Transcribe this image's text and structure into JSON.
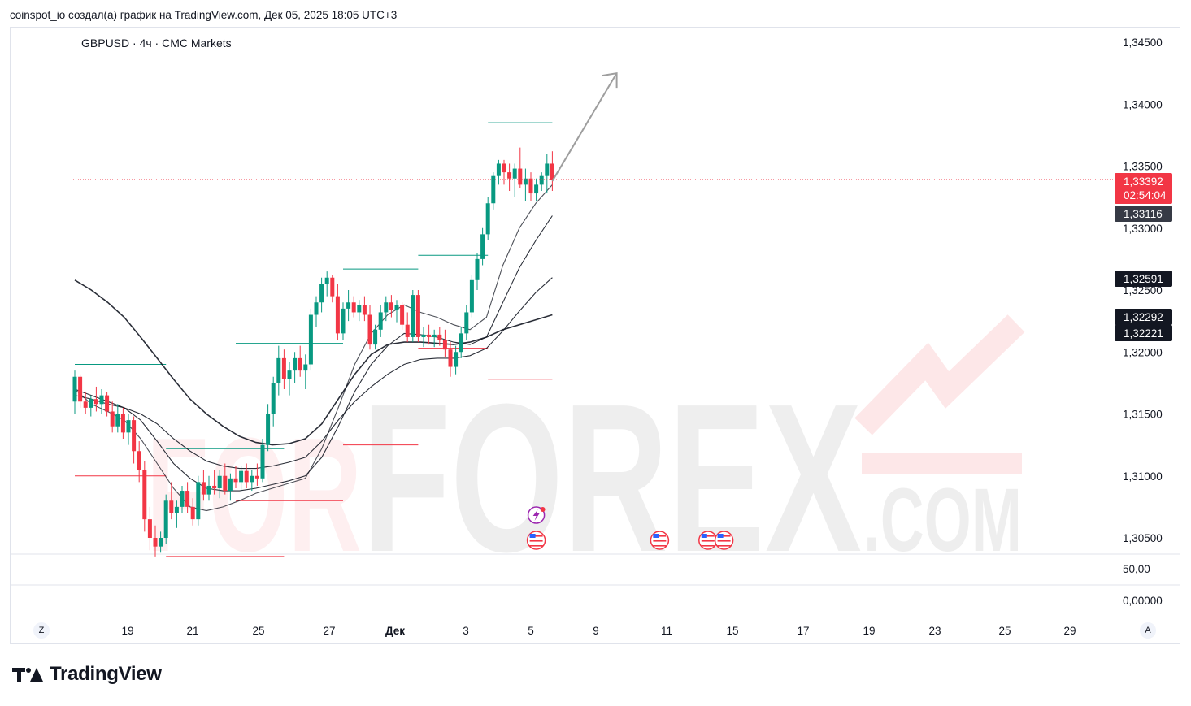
{
  "header": {
    "attribution": "coinspot_io создал(а) график на TradingView.com, Дек 05, 2025 18:05 UTC+3"
  },
  "symbol_line": "GBPUSD · 4ч · CMC Markets",
  "watermark": {
    "left": "FOR",
    "main": "FOREX",
    "suffix": ".COM"
  },
  "branding": "TradingView",
  "controls": {
    "left_button": "Z",
    "right_button": "A"
  },
  "colors": {
    "up": "#089981",
    "down": "#f23645",
    "ma": "#131722",
    "arrow": "#9e9e9e",
    "price_badge": "#f23645",
    "badge_dark": "#131722",
    "badge_gray": "#363a45"
  },
  "chart_data": {
    "type": "candlestick",
    "title": "GBPUSD · 4ч · CMC Markets",
    "timeframe": "4ч",
    "y_axis": {
      "ticks": [
        "1,34500",
        "1,34000",
        "1,33500",
        "1,33000",
        "1,32500",
        "1,32000",
        "1,31500",
        "1,31000",
        "1,30500"
      ],
      "range": [
        1.303,
        1.3465
      ]
    },
    "x_axis": {
      "ticks": [
        "19",
        "21",
        "25",
        "27",
        "Дек",
        "3",
        "5",
        "9",
        "11",
        "15",
        "17",
        "19",
        "23",
        "25",
        "29"
      ]
    },
    "price_badges": [
      {
        "label": "1,33392",
        "value": 1.33392,
        "extra": "02:54:04",
        "color": "#f23645"
      },
      {
        "label": "1,33116",
        "value": 1.33116,
        "color": "#363a45"
      },
      {
        "label": "1,32591",
        "value": 1.32591,
        "color": "#131722"
      },
      {
        "label": "1,32292",
        "value": 1.32292,
        "color": "#131722"
      },
      {
        "label": "1,32221",
        "value": 1.32221,
        "color": "#131722"
      }
    ],
    "current_price": 1.33392,
    "indicator_pane": {
      "ticks": [
        "50,00",
        "0,00000"
      ]
    },
    "candles": [
      [
        1.316,
        1.3185,
        1.315,
        1.318
      ],
      [
        1.318,
        1.3182,
        1.3155,
        1.316
      ],
      [
        1.316,
        1.3168,
        1.315,
        1.3155
      ],
      [
        1.3155,
        1.3165,
        1.3148,
        1.3162
      ],
      [
        1.3162,
        1.3172,
        1.3152,
        1.3158
      ],
      [
        1.3158,
        1.317,
        1.315,
        1.3165
      ],
      [
        1.3165,
        1.3168,
        1.3148,
        1.3152
      ],
      [
        1.3152,
        1.316,
        1.3135,
        1.314
      ],
      [
        1.314,
        1.3158,
        1.3135,
        1.315
      ],
      [
        1.315,
        1.3155,
        1.313,
        1.3135
      ],
      [
        1.3135,
        1.315,
        1.3125,
        1.3145
      ],
      [
        1.3145,
        1.3148,
        1.311,
        1.312
      ],
      [
        1.312,
        1.3128,
        1.3095,
        1.3105
      ],
      [
        1.3105,
        1.3112,
        1.3055,
        1.3065
      ],
      [
        1.3065,
        1.3075,
        1.304,
        1.305
      ],
      [
        1.305,
        1.306,
        1.3035,
        1.3043
      ],
      [
        1.3043,
        1.3055,
        1.3038,
        1.305
      ],
      [
        1.305,
        1.3085,
        1.3045,
        1.308
      ],
      [
        1.308,
        1.3095,
        1.3065,
        1.307
      ],
      [
        1.307,
        1.308,
        1.3058,
        1.3075
      ],
      [
        1.3075,
        1.3092,
        1.307,
        1.3088
      ],
      [
        1.3088,
        1.3095,
        1.307,
        1.3075
      ],
      [
        1.3075,
        1.3082,
        1.306,
        1.3065
      ],
      [
        1.3065,
        1.31,
        1.306,
        1.3095
      ],
      [
        1.3095,
        1.3105,
        1.308,
        1.3085
      ],
      [
        1.3085,
        1.31,
        1.308,
        1.3092
      ],
      [
        1.3092,
        1.3105,
        1.3085,
        1.309
      ],
      [
        1.309,
        1.3105,
        1.3082,
        1.31
      ],
      [
        1.31,
        1.311,
        1.3085,
        1.3088
      ],
      [
        1.3088,
        1.3102,
        1.308,
        1.3098
      ],
      [
        1.3098,
        1.3108,
        1.309,
        1.3095
      ],
      [
        1.3095,
        1.3108,
        1.3088,
        1.3104
      ],
      [
        1.3104,
        1.311,
        1.309,
        1.3095
      ],
      [
        1.3095,
        1.3105,
        1.3088,
        1.31
      ],
      [
        1.31,
        1.311,
        1.3092,
        1.3098
      ],
      [
        1.3098,
        1.313,
        1.3095,
        1.3125
      ],
      [
        1.3125,
        1.3158,
        1.312,
        1.315
      ],
      [
        1.315,
        1.318,
        1.314,
        1.3175
      ],
      [
        1.3175,
        1.3205,
        1.3165,
        1.3195
      ],
      [
        1.3195,
        1.3202,
        1.317,
        1.3178
      ],
      [
        1.3178,
        1.3192,
        1.3165,
        1.3185
      ],
      [
        1.3185,
        1.32,
        1.3175,
        1.3195
      ],
      [
        1.3195,
        1.3205,
        1.318,
        1.3185
      ],
      [
        1.3185,
        1.3198,
        1.317,
        1.319
      ],
      [
        1.319,
        1.3235,
        1.3185,
        1.323
      ],
      [
        1.323,
        1.3245,
        1.322,
        1.324
      ],
      [
        1.324,
        1.326,
        1.3232,
        1.3255
      ],
      [
        1.3255,
        1.3265,
        1.3245,
        1.326
      ],
      [
        1.326,
        1.3262,
        1.324,
        1.3245
      ],
      [
        1.3245,
        1.3255,
        1.321,
        1.3215
      ],
      [
        1.3215,
        1.324,
        1.321,
        1.3235
      ],
      [
        1.3235,
        1.325,
        1.3225,
        1.324
      ],
      [
        1.324,
        1.3245,
        1.3228,
        1.3232
      ],
      [
        1.3232,
        1.3242,
        1.3225,
        1.3238
      ],
      [
        1.3238,
        1.3245,
        1.3225,
        1.323
      ],
      [
        1.323,
        1.3238,
        1.3202,
        1.3206
      ],
      [
        1.3206,
        1.3222,
        1.3202,
        1.3218
      ],
      [
        1.3218,
        1.3238,
        1.3212,
        1.3232
      ],
      [
        1.3232,
        1.3245,
        1.3225,
        1.324
      ],
      [
        1.324,
        1.3246,
        1.3228,
        1.3234
      ],
      [
        1.3234,
        1.3242,
        1.3224,
        1.3238
      ],
      [
        1.3238,
        1.324,
        1.3218,
        1.3222
      ],
      [
        1.3222,
        1.3232,
        1.3208,
        1.3212
      ],
      [
        1.3212,
        1.325,
        1.3208,
        1.3246
      ],
      [
        1.3246,
        1.325,
        1.3208,
        1.3212
      ],
      [
        1.3212,
        1.322,
        1.3204,
        1.3214
      ],
      [
        1.3214,
        1.3222,
        1.3206,
        1.3212
      ],
      [
        1.3212,
        1.3218,
        1.3204,
        1.3214
      ],
      [
        1.3214,
        1.322,
        1.3205,
        1.321
      ],
      [
        1.321,
        1.3218,
        1.3196,
        1.3202
      ],
      [
        1.3202,
        1.3208,
        1.318,
        1.3188
      ],
      [
        1.3188,
        1.3205,
        1.3182,
        1.32
      ],
      [
        1.32,
        1.322,
        1.3195,
        1.3215
      ],
      [
        1.3215,
        1.3238,
        1.321,
        1.3232
      ],
      [
        1.3232,
        1.3262,
        1.3228,
        1.3258
      ],
      [
        1.3258,
        1.328,
        1.325,
        1.3275
      ],
      [
        1.3275,
        1.33,
        1.327,
        1.3295
      ],
      [
        1.3295,
        1.3325,
        1.329,
        1.332
      ],
      [
        1.332,
        1.3345,
        1.3315,
        1.3342
      ],
      [
        1.3342,
        1.3355,
        1.3335,
        1.3352
      ],
      [
        1.3352,
        1.3355,
        1.3335,
        1.3345
      ],
      [
        1.3345,
        1.3352,
        1.333,
        1.334
      ],
      [
        1.334,
        1.3352,
        1.3325,
        1.3348
      ],
      [
        1.3348,
        1.3365,
        1.3332,
        1.3335
      ],
      [
        1.3335,
        1.3348,
        1.3322,
        1.334
      ],
      [
        1.334,
        1.3345,
        1.3322,
        1.3328
      ],
      [
        1.3328,
        1.334,
        1.3322,
        1.3335
      ],
      [
        1.3335,
        1.3345,
        1.333,
        1.3342
      ],
      [
        1.3342,
        1.336,
        1.3328,
        1.3352
      ],
      [
        1.3352,
        1.3362,
        1.333,
        1.3339
      ]
    ],
    "moving_averages": [
      {
        "values": [
          1.317,
          1.3158,
          1.3152,
          1.3145,
          1.313,
          1.311,
          1.309,
          1.3075,
          1.3072,
          1.3075,
          1.308,
          1.3086,
          1.309,
          1.3094,
          1.3098,
          1.3122,
          1.3155,
          1.319,
          1.3215,
          1.323,
          1.3238,
          1.3232,
          1.3228,
          1.3222,
          1.3218,
          1.3228,
          1.327,
          1.33,
          1.332,
          1.3335
        ]
      },
      {
        "values": [
          1.317,
          1.3165,
          1.316,
          1.3155,
          1.3145,
          1.3128,
          1.311,
          1.3098,
          1.309,
          1.3088,
          1.3088,
          1.309,
          1.3093,
          1.3096,
          1.31,
          1.3115,
          1.314,
          1.3168,
          1.319,
          1.3205,
          1.3215,
          1.3214,
          1.3212,
          1.3208,
          1.3206,
          1.3212,
          1.324,
          1.3268,
          1.329,
          1.331
        ]
      },
      {
        "values": [
          1.3165,
          1.3162,
          1.3158,
          1.3155,
          1.315,
          1.3142,
          1.313,
          1.312,
          1.3112,
          1.3108,
          1.3106,
          1.3106,
          1.3108,
          1.3111,
          1.3115,
          1.3128,
          1.3145,
          1.316,
          1.3172,
          1.3182,
          1.319,
          1.3194,
          1.3195,
          1.3195,
          1.3197,
          1.3203,
          1.3217,
          1.3233,
          1.3248,
          1.326
        ]
      },
      {
        "values": [
          1.3258,
          1.325,
          1.324,
          1.3228,
          1.3212,
          1.3195,
          1.3178,
          1.3162,
          1.315,
          1.314,
          1.3132,
          1.3127,
          1.3125,
          1.3126,
          1.313,
          1.3142,
          1.3162,
          1.3182,
          1.3198,
          1.3206,
          1.3208,
          1.3208,
          1.3207,
          1.3206,
          1.3208,
          1.3212,
          1.3218,
          1.3222,
          1.3226,
          1.323
        ]
      }
    ],
    "period_boxes": [
      {
        "high": 1.319,
        "low": 1.31,
        "color_high": "#089981",
        "color_low": "#f23645",
        "from": 0,
        "to": 17
      },
      {
        "high": 1.3122,
        "low": 1.3035,
        "color_high": "#089981",
        "color_low": "#f23645",
        "from": 17,
        "to": 39
      },
      {
        "high": 1.3207,
        "low": 1.308,
        "color_high": "#089981",
        "color_low": "#f23645",
        "from": 30,
        "to": 50
      },
      {
        "high": 1.3267,
        "low": 1.3125,
        "color_high": "#089981",
        "color_low": "#f23645",
        "from": 50,
        "to": 64
      },
      {
        "high": 1.3278,
        "low": 1.3203,
        "color_high": "#089981",
        "color_low": "#f23645",
        "from": 64,
        "to": 77
      },
      {
        "high": 1.3385,
        "low": 1.3178,
        "color_high": "#089981",
        "color_low": "#f23645",
        "from": 77,
        "to": 89
      }
    ],
    "events": [
      {
        "type": "flash",
        "x_index": 86
      },
      {
        "type": "us-flag",
        "x_index": 86
      },
      {
        "type": "us-flag",
        "x_index": 109
      },
      {
        "type": "us-flag",
        "x_index": 118
      },
      {
        "type": "us-flag",
        "x_index": 121
      }
    ],
    "annotation": {
      "type": "arrow",
      "from": [
        89,
        1.3338
      ],
      "to": [
        101,
        1.3425
      ]
    }
  }
}
